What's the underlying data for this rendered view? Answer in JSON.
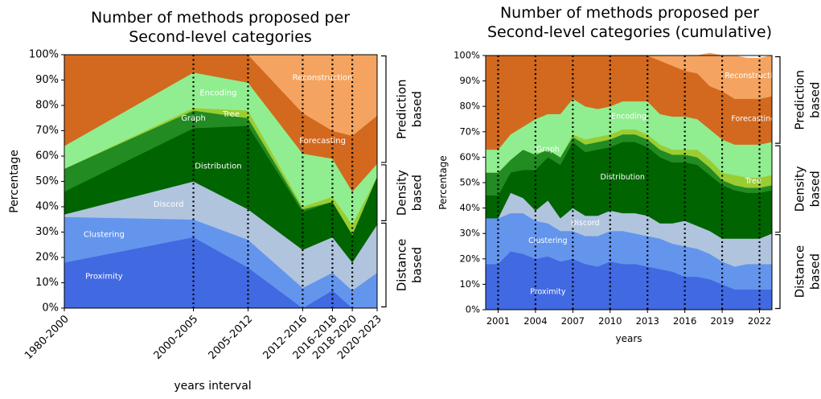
{
  "chart_data": [
    {
      "type": "area",
      "stacked": true,
      "title": "Number of methods proposed per\nSecond-level categories",
      "xlabel": "years interval",
      "ylabel": "Percentage",
      "ylim": [
        0,
        100
      ],
      "y_tick_suffix": "%",
      "yticks": [
        0,
        10,
        20,
        30,
        40,
        50,
        60,
        70,
        80,
        90,
        100
      ],
      "x_positions": [
        1990,
        2003,
        2008.5,
        2014,
        2017,
        2019,
        2021.5
      ],
      "xlim": [
        1990,
        2021.5
      ],
      "categories": [
        "1980-2000",
        "2000-2005",
        "2005-2012",
        "2012-2016",
        "2016-2018",
        "2018-2020",
        "2020-2023"
      ],
      "vlines": [
        2003,
        2008.5,
        2014,
        2017,
        2019
      ],
      "series": [
        {
          "name": "Proximity",
          "color": "#4169e1",
          "values": [
            18,
            28,
            16,
            0,
            7,
            0,
            0
          ]
        },
        {
          "name": "Clustering",
          "color": "#6495ed",
          "values": [
            18,
            7,
            11,
            8,
            7,
            7,
            14
          ]
        },
        {
          "name": "Discord",
          "color": "#b0c4de",
          "values": [
            1,
            15,
            12,
            15,
            14,
            11,
            19
          ]
        },
        {
          "name": "Distribution",
          "color": "#006400",
          "values": [
            9,
            21,
            33,
            15,
            14,
            11,
            19
          ]
        },
        {
          "name": "Graph",
          "color": "#228b22",
          "values": [
            9,
            7,
            3,
            1,
            0,
            0,
            0
          ]
        },
        {
          "name": "Tree",
          "color": "#9acd32",
          "values": [
            0,
            1,
            3,
            1,
            2,
            4,
            0
          ]
        },
        {
          "name": "Encoding",
          "color": "#90ee90",
          "values": [
            9,
            14,
            11,
            21,
            15,
            13,
            5
          ]
        },
        {
          "name": "Forecasting",
          "color": "#d2691e",
          "values": [
            36,
            7,
            11,
            16,
            11,
            22,
            19
          ]
        },
        {
          "name": "Reconstruction",
          "color": "#f4a460",
          "values": [
            0,
            0,
            0,
            23,
            30,
            32,
            24
          ]
        }
      ],
      "labels": [
        {
          "text": "Proximity",
          "x": 1994,
          "y": 12.5
        },
        {
          "text": "Clustering",
          "x": 1994,
          "y": 29
        },
        {
          "text": "Discord",
          "x": 2000.5,
          "y": 41
        },
        {
          "text": "Distribution",
          "x": 2005.5,
          "y": 56
        },
        {
          "text": "Graph",
          "x": 2003,
          "y": 75
        },
        {
          "text": "Tree",
          "x": 2006.8,
          "y": 76.5
        },
        {
          "text": "Encoding",
          "x": 2005.5,
          "y": 85
        },
        {
          "text": "Forecasting",
          "x": 2016,
          "y": 66
        },
        {
          "text": "Reconstruction",
          "x": 2016,
          "y": 91
        }
      ],
      "brackets": [
        {
          "range": [
            0,
            34
          ],
          "label": [
            "Distance",
            "based"
          ]
        },
        {
          "range": [
            34,
            57
          ],
          "label": [
            "Density",
            "based"
          ]
        },
        {
          "range": [
            57,
            100
          ],
          "label": [
            "Prediction",
            "based"
          ]
        }
      ]
    },
    {
      "type": "area",
      "stacked": true,
      "title": "Number of methods proposed per\nSecond-level categories (cumulative)",
      "xlabel": "years",
      "ylabel": "Percentage",
      "ylim": [
        0,
        100
      ],
      "y_tick_suffix": "%",
      "yticks": [
        0,
        10,
        20,
        30,
        40,
        50,
        60,
        70,
        80,
        90,
        100
      ],
      "x": [
        2000,
        2001,
        2002,
        2003,
        2004,
        2005,
        2006,
        2007,
        2008,
        2009,
        2010,
        2011,
        2012,
        2013,
        2014,
        2015,
        2016,
        2017,
        2018,
        2019,
        2020,
        2021,
        2022,
        2023
      ],
      "xlim": [
        2000,
        2023
      ],
      "xticks": [
        2001,
        2004,
        2007,
        2010,
        2013,
        2016,
        2019,
        2022
      ],
      "vlines": [
        2001,
        2004,
        2007,
        2010,
        2013,
        2016,
        2019,
        2022
      ],
      "series": [
        {
          "name": "Proximity",
          "color": "#4169e1",
          "values": [
            18,
            18,
            23,
            22,
            20,
            21,
            19,
            20,
            18,
            17,
            19,
            18,
            18,
            17,
            16,
            15,
            13,
            13,
            12,
            10,
            8,
            8,
            8,
            8
          ]
        },
        {
          "name": "Clustering",
          "color": "#6495ed",
          "values": [
            18,
            18,
            15,
            16,
            15,
            13,
            12,
            11,
            11,
            12,
            12,
            13,
            12,
            12,
            12,
            11,
            12,
            11,
            10,
            9,
            9,
            10,
            10,
            10
          ]
        },
        {
          "name": "Discord",
          "color": "#b0c4de",
          "values": [
            0,
            0,
            8,
            6,
            4,
            9,
            5,
            9,
            8,
            8,
            8,
            7,
            8,
            8,
            6,
            8,
            10,
            9,
            9,
            9,
            11,
            10,
            10,
            12
          ]
        },
        {
          "name": "Distribution",
          "color": "#006400",
          "values": [
            9,
            9,
            8,
            11,
            16,
            17,
            21,
            26,
            25,
            26,
            25,
            28,
            28,
            27,
            26,
            24,
            23,
            24,
            22,
            21,
            19,
            18,
            18,
            17
          ]
        },
        {
          "name": "Graph",
          "color": "#228b22",
          "values": [
            9,
            9,
            5,
            8,
            6,
            3,
            3,
            2,
            3,
            3,
            3,
            3,
            3,
            3,
            3,
            3,
            3,
            3,
            3,
            2,
            2,
            2,
            2,
            2
          ]
        },
        {
          "name": "Tree",
          "color": "#9acd32",
          "values": [
            0,
            0,
            0,
            0,
            0,
            0,
            0,
            1,
            2,
            2,
            2,
            2,
            2,
            2,
            2,
            2,
            2,
            3,
            3,
            3,
            4,
            4,
            4,
            4
          ]
        },
        {
          "name": "Encoding",
          "color": "#90ee90",
          "values": [
            9,
            9,
            10,
            9,
            14,
            14,
            17,
            14,
            13,
            11,
            11,
            11,
            11,
            13,
            12,
            13,
            13,
            12,
            12,
            13,
            12,
            13,
            13,
            13
          ]
        },
        {
          "name": "Forecasting",
          "color": "#d2691e",
          "values": [
            37,
            37,
            31,
            28,
            25,
            23,
            23,
            17,
            20,
            21,
            20,
            18,
            18,
            18,
            21,
            20,
            18,
            18,
            17,
            19,
            18,
            18,
            18,
            18
          ]
        },
        {
          "name": "Reconstruction",
          "color": "#f4a460",
          "values": [
            0,
            0,
            0,
            0,
            0,
            0,
            0,
            0,
            0,
            0,
            0,
            0,
            0,
            0,
            2,
            4,
            6,
            7,
            13,
            14,
            17,
            16,
            16,
            16
          ]
        }
      ],
      "labels": [
        {
          "text": "Proximity",
          "x": 2005,
          "y": 7
        },
        {
          "text": "Clustering",
          "x": 2005,
          "y": 27
        },
        {
          "text": "Discord",
          "x": 2008,
          "y": 34
        },
        {
          "text": "Distribution",
          "x": 2011,
          "y": 52
        },
        {
          "text": "Graph",
          "x": 2005,
          "y": 63
        },
        {
          "text": "Encoding",
          "x": 2011.5,
          "y": 76
        },
        {
          "text": "Tree",
          "x": 2021.5,
          "y": 50.5
        },
        {
          "text": "Forecasting",
          "x": 2021.5,
          "y": 75
        },
        {
          "text": "Reconstruction",
          "x": 2021.5,
          "y": 92
        }
      ],
      "brackets": [
        {
          "range": [
            0,
            30
          ],
          "label": [
            "Distance",
            "based"
          ]
        },
        {
          "range": [
            30,
            65
          ],
          "label": [
            "Density",
            "based"
          ]
        },
        {
          "range": [
            65,
            100
          ],
          "label": [
            "Prediction",
            "based"
          ]
        }
      ]
    }
  ]
}
